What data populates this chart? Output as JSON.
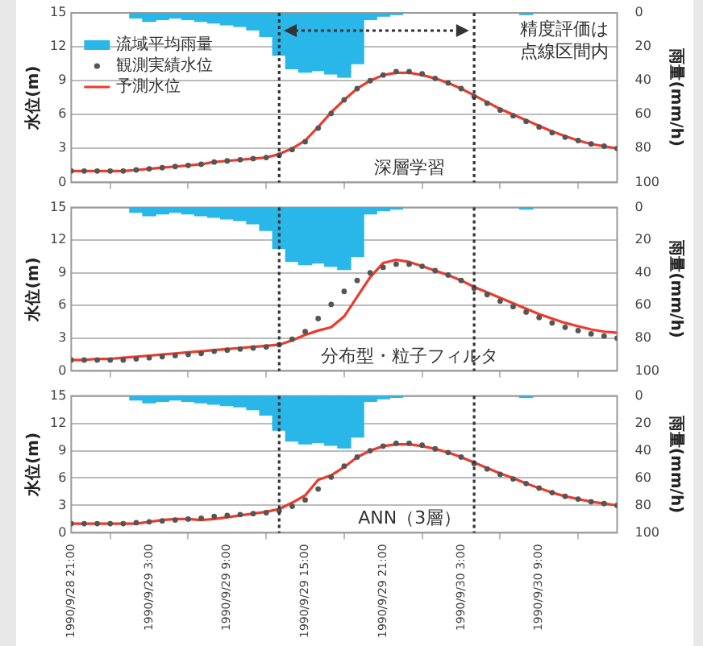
{
  "chart_data": [
    {
      "type": "line",
      "title": "深層学習",
      "ylabel": "水位(m)",
      "y2label": "雨量(mm/h)",
      "annotations": [
        "精度評価は点線区間内"
      ],
      "x": [
        "1990-09-28T21:00",
        "1990-09-28T22:00",
        "1990-09-28T23:00",
        "1990-09-29T00:00",
        "1990-09-29T01:00",
        "1990-09-29T02:00",
        "1990-09-29T03:00",
        "1990-09-29T04:00",
        "1990-09-29T05:00",
        "1990-09-29T06:00",
        "1990-09-29T07:00",
        "1990-09-29T08:00",
        "1990-09-29T09:00",
        "1990-09-29T10:00",
        "1990-09-29T11:00",
        "1990-09-29T12:00",
        "1990-09-29T13:00",
        "1990-09-29T14:00",
        "1990-09-29T15:00",
        "1990-09-29T16:00",
        "1990-09-29T17:00",
        "1990-09-29T18:00",
        "1990-09-29T19:00",
        "1990-09-29T20:00",
        "1990-09-29T21:00",
        "1990-09-29T22:00",
        "1990-09-29T23:00",
        "1990-09-30T00:00",
        "1990-09-30T01:00",
        "1990-09-30T02:00",
        "1990-09-30T03:00",
        "1990-09-30T04:00",
        "1990-09-30T05:00",
        "1990-09-30T06:00",
        "1990-09-30T07:00",
        "1990-09-30T08:00",
        "1990-09-30T09:00",
        "1990-09-30T10:00",
        "1990-09-30T11:00",
        "1990-09-30T12:00",
        "1990-09-30T13:00",
        "1990-09-30T14:00",
        "1990-09-30T15:00"
      ],
      "xlim": [
        "1990-09-28T21:00",
        "1990-09-30T15:00"
      ],
      "xticks": [
        "1990-09-28T21:00",
        "1990-09-29T03:00",
        "1990-09-29T09:00",
        "1990-09-29T15:00",
        "1990-09-29T21:00",
        "1990-09-30T03:00",
        "1990-09-30T09:00"
      ],
      "ylim": [
        0,
        15
      ],
      "yticks": [
        0,
        3,
        6,
        9,
        12,
        15
      ],
      "y2lim": [
        100,
        0
      ],
      "y2ticks": [
        0,
        20,
        40,
        60,
        80,
        100
      ],
      "grid": "y",
      "legend": "top left",
      "tick_labels": "y",
      "ref_lines": [
        {
          "axis": "x",
          "value": "1990-09-29T13:00",
          "color": "#333333",
          "line_style": "dotted"
        },
        {
          "axis": "x",
          "value": "1990-09-30T04:00",
          "color": "#333333",
          "line_style": "dotted"
        }
      ],
      "series": [
        {
          "name": "流域平均雨量",
          "type": "bar",
          "axis": "y2",
          "color": "#29b6e8",
          "values": [
            null,
            null,
            null,
            null,
            null,
            3,
            5,
            4,
            3,
            4,
            5,
            6,
            7,
            8,
            10,
            14,
            25,
            33,
            35,
            34,
            36,
            38,
            30,
            4,
            2,
            1,
            null,
            null,
            null,
            null,
            null,
            null,
            null,
            null,
            null,
            1,
            null,
            null,
            null,
            null,
            null,
            null,
            null
          ]
        },
        {
          "name": "観測実績水位",
          "type": "scatter",
          "marker": "circle",
          "color": "#555555",
          "values": [
            1.0,
            1.0,
            1.0,
            1.0,
            1.0,
            1.1,
            1.2,
            1.3,
            1.4,
            1.5,
            1.6,
            1.8,
            1.9,
            2.0,
            2.1,
            2.2,
            2.4,
            2.9,
            3.6,
            4.8,
            6.1,
            7.3,
            8.3,
            9.0,
            9.5,
            9.8,
            9.8,
            9.6,
            9.2,
            8.8,
            8.3,
            7.6,
            7.0,
            6.4,
            5.9,
            5.4,
            4.9,
            4.4,
            4.0,
            3.7,
            3.4,
            3.2,
            3.0
          ]
        },
        {
          "name": "予測水位",
          "color": "#ee3a2a",
          "line_style": "solid",
          "values": [
            1.0,
            1.0,
            1.0,
            1.0,
            1.0,
            1.1,
            1.2,
            1.3,
            1.4,
            1.5,
            1.6,
            1.8,
            1.9,
            2.0,
            2.1,
            2.2,
            2.5,
            3.0,
            3.7,
            4.9,
            6.2,
            7.3,
            8.3,
            9.0,
            9.5,
            9.7,
            9.7,
            9.5,
            9.2,
            8.8,
            8.3,
            7.7,
            7.1,
            6.5,
            6.0,
            5.5,
            5.0,
            4.5,
            4.1,
            3.7,
            3.4,
            3.2,
            3.0
          ]
        }
      ]
    },
    {
      "type": "line",
      "title": "分布型・粒子フィルタ",
      "ylabel": "水位(m)",
      "y2label": "雨量(mm/h)",
      "x": [
        "1990-09-28T21:00",
        "1990-09-28T22:00",
        "1990-09-28T23:00",
        "1990-09-29T00:00",
        "1990-09-29T01:00",
        "1990-09-29T02:00",
        "1990-09-29T03:00",
        "1990-09-29T04:00",
        "1990-09-29T05:00",
        "1990-09-29T06:00",
        "1990-09-29T07:00",
        "1990-09-29T08:00",
        "1990-09-29T09:00",
        "1990-09-29T10:00",
        "1990-09-29T11:00",
        "1990-09-29T12:00",
        "1990-09-29T13:00",
        "1990-09-29T14:00",
        "1990-09-29T15:00",
        "1990-09-29T16:00",
        "1990-09-29T17:00",
        "1990-09-29T18:00",
        "1990-09-29T19:00",
        "1990-09-29T20:00",
        "1990-09-29T21:00",
        "1990-09-29T22:00",
        "1990-09-29T23:00",
        "1990-09-30T00:00",
        "1990-09-30T01:00",
        "1990-09-30T02:00",
        "1990-09-30T03:00",
        "1990-09-30T04:00",
        "1990-09-30T05:00",
        "1990-09-30T06:00",
        "1990-09-30T07:00",
        "1990-09-30T08:00",
        "1990-09-30T09:00",
        "1990-09-30T10:00",
        "1990-09-30T11:00",
        "1990-09-30T12:00",
        "1990-09-30T13:00",
        "1990-09-30T14:00",
        "1990-09-30T15:00"
      ],
      "xlim": [
        "1990-09-28T21:00",
        "1990-09-30T15:00"
      ],
      "xticks": [
        "1990-09-28T21:00",
        "1990-09-29T03:00",
        "1990-09-29T09:00",
        "1990-09-29T15:00",
        "1990-09-29T21:00",
        "1990-09-30T03:00",
        "1990-09-30T09:00"
      ],
      "ylim": [
        0,
        15
      ],
      "yticks": [
        0,
        3,
        6,
        9,
        12,
        15
      ],
      "y2lim": [
        100,
        0
      ],
      "y2ticks": [
        0,
        20,
        40,
        60,
        80,
        100
      ],
      "grid": "y",
      "tick_labels": "y",
      "ref_lines": [
        {
          "axis": "x",
          "value": "1990-09-29T13:00",
          "color": "#333333",
          "line_style": "dotted"
        },
        {
          "axis": "x",
          "value": "1990-09-30T04:00",
          "color": "#333333",
          "line_style": "dotted"
        }
      ],
      "series": [
        {
          "type": "bar",
          "axis": "y2",
          "color": "#29b6e8",
          "values": [
            null,
            null,
            null,
            null,
            null,
            3,
            5,
            4,
            3,
            4,
            5,
            6,
            7,
            8,
            10,
            14,
            25,
            33,
            35,
            34,
            36,
            38,
            30,
            4,
            2,
            1,
            null,
            null,
            null,
            null,
            null,
            null,
            null,
            null,
            null,
            1,
            null,
            null,
            null,
            null,
            null,
            null,
            null
          ]
        },
        {
          "type": "scatter",
          "marker": "circle",
          "color": "#555555",
          "values": [
            1.0,
            1.0,
            1.0,
            1.0,
            1.0,
            1.1,
            1.2,
            1.3,
            1.4,
            1.5,
            1.6,
            1.8,
            1.9,
            2.0,
            2.1,
            2.2,
            2.4,
            2.9,
            3.6,
            4.8,
            6.1,
            7.3,
            8.3,
            9.0,
            9.5,
            9.8,
            9.8,
            9.6,
            9.2,
            8.8,
            8.3,
            7.6,
            7.0,
            6.4,
            5.9,
            5.4,
            4.9,
            4.4,
            4.0,
            3.7,
            3.4,
            3.2,
            3.0
          ]
        },
        {
          "color": "#ee3a2a",
          "line_style": "solid",
          "values": [
            1.0,
            1.0,
            1.1,
            1.1,
            1.2,
            1.3,
            1.4,
            1.5,
            1.6,
            1.7,
            1.8,
            1.9,
            2.0,
            2.1,
            2.2,
            2.3,
            2.4,
            2.8,
            3.3,
            3.7,
            4.0,
            5.0,
            6.8,
            8.6,
            9.9,
            10.2,
            10.0,
            9.6,
            9.2,
            8.8,
            8.3,
            7.7,
            7.2,
            6.7,
            6.2,
            5.7,
            5.2,
            4.8,
            4.4,
            4.1,
            3.8,
            3.6,
            3.5
          ]
        }
      ]
    },
    {
      "type": "line",
      "title": "ANN（3層）",
      "ylabel": "水位(m)",
      "y2label": "雨量(mm/h)",
      "x": [
        "1990-09-28T21:00",
        "1990-09-28T22:00",
        "1990-09-28T23:00",
        "1990-09-29T00:00",
        "1990-09-29T01:00",
        "1990-09-29T02:00",
        "1990-09-29T03:00",
        "1990-09-29T04:00",
        "1990-09-29T05:00",
        "1990-09-29T06:00",
        "1990-09-29T07:00",
        "1990-09-29T08:00",
        "1990-09-29T09:00",
        "1990-09-29T10:00",
        "1990-09-29T11:00",
        "1990-09-29T12:00",
        "1990-09-29T13:00",
        "1990-09-29T14:00",
        "1990-09-29T15:00",
        "1990-09-29T16:00",
        "1990-09-29T17:00",
        "1990-09-29T18:00",
        "1990-09-29T19:00",
        "1990-09-29T20:00",
        "1990-09-29T21:00",
        "1990-09-29T22:00",
        "1990-09-29T23:00",
        "1990-09-30T00:00",
        "1990-09-30T01:00",
        "1990-09-30T02:00",
        "1990-09-30T03:00",
        "1990-09-30T04:00",
        "1990-09-30T05:00",
        "1990-09-30T06:00",
        "1990-09-30T07:00",
        "1990-09-30T08:00",
        "1990-09-30T09:00",
        "1990-09-30T10:00",
        "1990-09-30T11:00",
        "1990-09-30T12:00",
        "1990-09-30T13:00",
        "1990-09-30T14:00",
        "1990-09-30T15:00"
      ],
      "xlim": [
        "1990-09-28T21:00",
        "1990-09-30T15:00"
      ],
      "xticks": [
        {
          "value": "1990-09-28T21:00",
          "label": "1990/9/28 21:00"
        },
        {
          "value": "1990-09-29T03:00",
          "label": "1990/9/29 3:00"
        },
        {
          "value": "1990-09-29T09:00",
          "label": "1990/9/29 9:00"
        },
        {
          "value": "1990-09-29T15:00",
          "label": "1990/9/29 15:00"
        },
        {
          "value": "1990-09-29T21:00",
          "label": "1990/9/29 21:00"
        },
        {
          "value": "1990-09-30T03:00",
          "label": "1990/9/30 3:00"
        },
        {
          "value": "1990-09-30T09:00",
          "label": "1990/9/30 9:00"
        }
      ],
      "ylim": [
        0,
        15
      ],
      "yticks": [
        0,
        3,
        6,
        9,
        12,
        15
      ],
      "y2lim": [
        100,
        0
      ],
      "y2ticks": [
        0,
        20,
        40,
        60,
        80,
        100
      ],
      "grid": "y",
      "ref_lines": [
        {
          "axis": "x",
          "value": "1990-09-29T13:00",
          "color": "#333333",
          "line_style": "dotted"
        },
        {
          "axis": "x",
          "value": "1990-09-30T04:00",
          "color": "#333333",
          "line_style": "dotted"
        }
      ],
      "series": [
        {
          "type": "bar",
          "axis": "y2",
          "color": "#29b6e8",
          "values": [
            null,
            null,
            null,
            null,
            null,
            3,
            5,
            4,
            3,
            4,
            5,
            6,
            7,
            8,
            10,
            14,
            25,
            33,
            35,
            34,
            36,
            38,
            30,
            4,
            2,
            1,
            null,
            null,
            null,
            null,
            null,
            null,
            null,
            null,
            null,
            1,
            null,
            null,
            null,
            null,
            null,
            null,
            null
          ]
        },
        {
          "type": "scatter",
          "marker": "circle",
          "color": "#555555",
          "values": [
            1.0,
            1.0,
            1.0,
            1.0,
            1.0,
            1.1,
            1.2,
            1.3,
            1.4,
            1.5,
            1.6,
            1.8,
            1.9,
            2.0,
            2.1,
            2.2,
            2.4,
            2.9,
            3.6,
            4.8,
            6.1,
            7.3,
            8.3,
            9.0,
            9.5,
            9.8,
            9.8,
            9.6,
            9.2,
            8.8,
            8.3,
            7.6,
            7.0,
            6.4,
            5.9,
            5.4,
            4.9,
            4.4,
            4.0,
            3.7,
            3.4,
            3.2,
            3.0
          ]
        },
        {
          "color": "#ee3a2a",
          "line_style": "solid",
          "values": [
            1.0,
            1.0,
            1.0,
            1.0,
            1.0,
            1.0,
            1.2,
            1.4,
            1.5,
            1.5,
            1.4,
            1.5,
            1.7,
            1.9,
            2.1,
            2.3,
            2.6,
            3.3,
            4.1,
            5.8,
            6.3,
            7.2,
            8.3,
            9.0,
            9.5,
            9.7,
            9.7,
            9.5,
            9.2,
            8.8,
            8.3,
            7.7,
            7.1,
            6.5,
            6.0,
            5.4,
            4.9,
            4.4,
            4.0,
            3.7,
            3.4,
            3.2,
            3.0
          ]
        }
      ]
    }
  ]
}
